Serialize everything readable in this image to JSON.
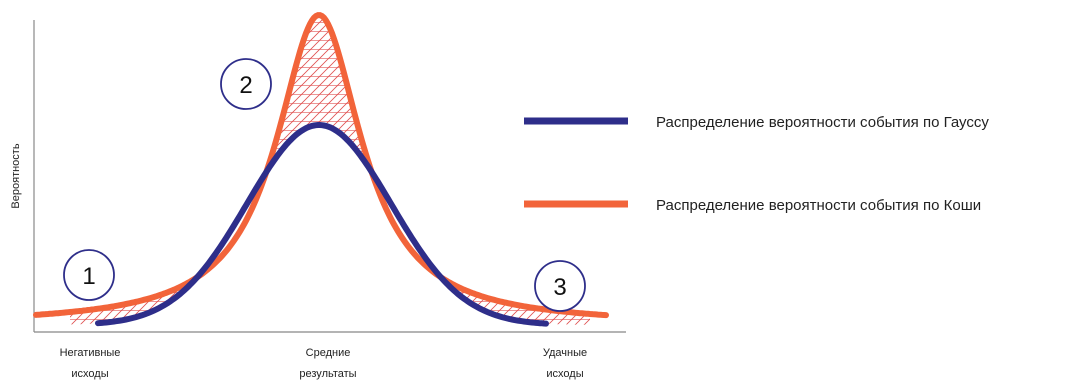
{
  "chart_data": {
    "type": "line",
    "title": "",
    "xlabel": "",
    "ylabel": "Вероятность",
    "x_labels": [
      [
        "Негативные",
        "исходы"
      ],
      [
        "Средние",
        "результаты"
      ],
      [
        "Удачные",
        "исходы"
      ]
    ],
    "markers": [
      "1",
      "2",
      "3"
    ],
    "series": [
      {
        "name": "Распределение вероятности события по Гауссу",
        "color": "#2e2e8a",
        "kind": "gaussian"
      },
      {
        "name": "Распределение вероятности события по Коши",
        "color": "#f2643a",
        "kind": "cauchy"
      }
    ],
    "hatch_color": "#e05050",
    "grid": false,
    "legend_position": "right"
  }
}
